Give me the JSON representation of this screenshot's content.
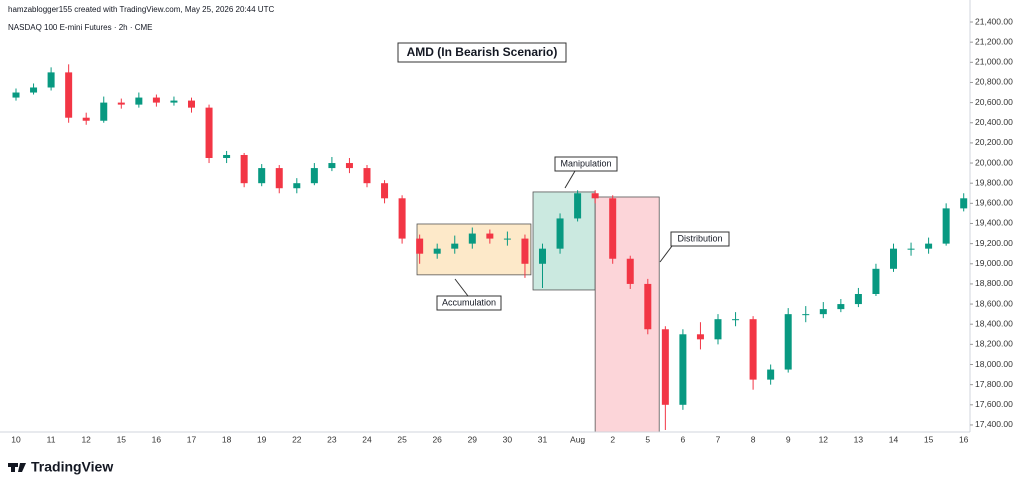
{
  "header": {
    "credit": "hamzablogger155 created with TradingView.com, May 25, 2026 20:44 UTC",
    "symbol": "NASDAQ 100 E-mini Futures · 2h · CME"
  },
  "chart_data": {
    "type": "candlestick",
    "title": "AMD (In Bearish Scenario)",
    "categories": [
      "10",
      null,
      "11",
      null,
      "12",
      null,
      "15",
      null,
      "16",
      null,
      "17",
      null,
      "18",
      null,
      "19",
      null,
      "22",
      null,
      "23",
      null,
      "24",
      null,
      "25",
      null,
      "26",
      null,
      "29",
      null,
      "30",
      null,
      "31",
      null,
      "Aug",
      null,
      "2",
      null,
      "5",
      null,
      "6",
      null,
      "7",
      null,
      "8",
      null,
      "9",
      null,
      "12",
      null,
      "13",
      null,
      "14",
      null,
      "15",
      null,
      "16"
    ],
    "open": [
      20650,
      20700,
      20750,
      20900,
      20450,
      20420,
      20600,
      20580,
      20650,
      20600,
      20620,
      20550,
      20050,
      20080,
      19800,
      19950,
      19750,
      19800,
      19950,
      20000,
      19950,
      19800,
      19650,
      19250,
      19100,
      19150,
      19200,
      19300,
      19250,
      19250,
      19000,
      19150,
      19450,
      19700,
      19650,
      19050,
      18800,
      18350,
      17600,
      18300,
      18250,
      18450,
      18450,
      17850,
      17950,
      18500,
      18500,
      18550,
      18600,
      18700,
      18950,
      19150,
      19150,
      19200,
      19550
    ],
    "high": [
      20740,
      20790,
      20950,
      20980,
      20500,
      20660,
      20640,
      20700,
      20680,
      20660,
      20650,
      20580,
      20120,
      20100,
      19990,
      19980,
      19850,
      20000,
      20060,
      20050,
      19980,
      19830,
      19680,
      19290,
      19200,
      19280,
      19360,
      19340,
      19320,
      19290,
      19200,
      19500,
      19730,
      19730,
      19680,
      19080,
      18850,
      18380,
      18350,
      18420,
      18500,
      18520,
      18480,
      18000,
      18560,
      18580,
      18620,
      18650,
      18760,
      19000,
      19200,
      19210,
      19260,
      19600,
      19700
    ],
    "low": [
      20620,
      20680,
      20720,
      20400,
      20380,
      20400,
      20540,
      20550,
      20560,
      20570,
      20500,
      20000,
      20000,
      19760,
      19770,
      19700,
      19700,
      19780,
      19920,
      19900,
      19760,
      19600,
      19200,
      19000,
      19050,
      19100,
      19150,
      19200,
      19180,
      18860,
      18760,
      19100,
      19420,
      19600,
      19000,
      18750,
      18300,
      17350,
      17550,
      18150,
      18200,
      18380,
      17750,
      17800,
      17920,
      18420,
      18460,
      18520,
      18570,
      18680,
      18920,
      19080,
      19100,
      19180,
      19520
    ],
    "close": [
      20700,
      20750,
      20900,
      20450,
      20420,
      20600,
      20580,
      20650,
      20600,
      20620,
      20550,
      20050,
      20080,
      19800,
      19950,
      19750,
      19800,
      19950,
      20000,
      19950,
      19800,
      19650,
      19250,
      19100,
      19150,
      19200,
      19300,
      19250,
      19250,
      19000,
      19150,
      19450,
      19700,
      19650,
      19050,
      18800,
      18350,
      17600,
      18300,
      18250,
      18450,
      18450,
      17850,
      17950,
      18500,
      18500,
      18550,
      18600,
      18700,
      18950,
      19150,
      19150,
      19200,
      19550,
      19650
    ],
    "up_color": "#089981",
    "down_color": "#f23645",
    "ylim": [
      17330,
      21420
    ],
    "yticks": [
      {
        "value": 17400,
        "label": "17,400.00"
      },
      {
        "value": 17600,
        "label": "17,600.00"
      },
      {
        "value": 17800,
        "label": "17,800.00"
      },
      {
        "value": 18000,
        "label": "18,000.00"
      },
      {
        "value": 18200,
        "label": "18,200.00"
      },
      {
        "value": 18400,
        "label": "18,400.00"
      },
      {
        "value": 18600,
        "label": "18,600.00"
      },
      {
        "value": 18800,
        "label": "18,800.00"
      },
      {
        "value": 19000,
        "label": "19,000.00"
      },
      {
        "value": 19200,
        "label": "19,200.00"
      },
      {
        "value": 19400,
        "label": "19,400.00"
      },
      {
        "value": 19600,
        "label": "19,600.00"
      },
      {
        "value": 19800,
        "label": "19,800.00"
      },
      {
        "value": 20000,
        "label": "20,000.00"
      },
      {
        "value": 20200,
        "label": "20,200.00"
      },
      {
        "value": 20400,
        "label": "20,400.00"
      },
      {
        "value": 20600,
        "label": "20,600.00"
      },
      {
        "value": 20800,
        "label": "20,800.00"
      },
      {
        "value": 21000,
        "label": "21,000.00"
      },
      {
        "value": 21200,
        "label": "21,200.00"
      },
      {
        "value": 21400,
        "label": "21,400.00"
      }
    ],
    "zones": [
      {
        "label": "Accumulation",
        "color": "#fde9c9",
        "x": [
          22.85,
          29.34
        ],
        "y": [
          18890,
          19395
        ]
      },
      {
        "label": "Manipulation",
        "color": "#cbe9e0",
        "x": [
          29.46,
          33.0
        ],
        "y": [
          18740,
          19713
        ]
      },
      {
        "label": "Distribution",
        "color": "#fcd5d9",
        "x": [
          33.0,
          36.65
        ],
        "y": [
          17330,
          19663
        ]
      }
    ]
  },
  "footer": {
    "logo": "TradingView"
  }
}
